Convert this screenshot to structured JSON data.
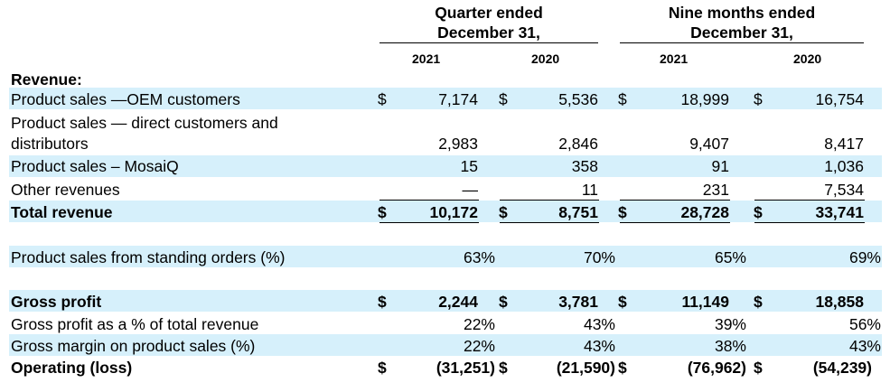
{
  "headers": {
    "quarter": "Quarter ended\nDecember 31,",
    "quarter_l1": "Quarter ended",
    "quarter_l2": "December 31,",
    "nine_l1": "Nine months ended",
    "nine_l2": "December 31,",
    "years": [
      "2021",
      "2020",
      "2021",
      "2020"
    ]
  },
  "currency_symbol": "$",
  "section_label": "Revenue:",
  "rows": [
    {
      "label": "Product sales —OEM customers",
      "values": [
        "7,174",
        "5,536",
        "18,999",
        "16,754"
      ]
    },
    {
      "label_l1": "Product sales — direct customers and",
      "label_l2": "distributors",
      "values": [
        "2,983",
        "2,846",
        "9,407",
        "8,417"
      ]
    },
    {
      "label": "Product sales – MosaiQ",
      "values": [
        "15",
        "358",
        "91",
        "1,036"
      ]
    },
    {
      "label": "Other revenues",
      "values": [
        "—",
        "11",
        "231",
        "7,534"
      ]
    },
    {
      "label": "Total revenue",
      "values": [
        "10,172",
        "8,751",
        "28,728",
        "33,741"
      ]
    },
    {
      "label": "Product sales from standing orders (%)",
      "values": [
        "63%",
        "70%",
        "65%",
        "69%"
      ]
    },
    {
      "label": "Gross profit",
      "values": [
        "2,244",
        "3,781",
        "11,149",
        "18,858"
      ]
    },
    {
      "label": "Gross profit as a % of total revenue",
      "values": [
        "22%",
        "43%",
        "39%",
        "56%"
      ]
    },
    {
      "label": "Gross margin on product sales (%)",
      "values": [
        "22%",
        "43%",
        "38%",
        "43%"
      ]
    },
    {
      "label": "Operating (loss)",
      "values": [
        "(31,251)",
        "(21,590)",
        "(76,962)",
        "(54,239)"
      ]
    }
  ]
}
